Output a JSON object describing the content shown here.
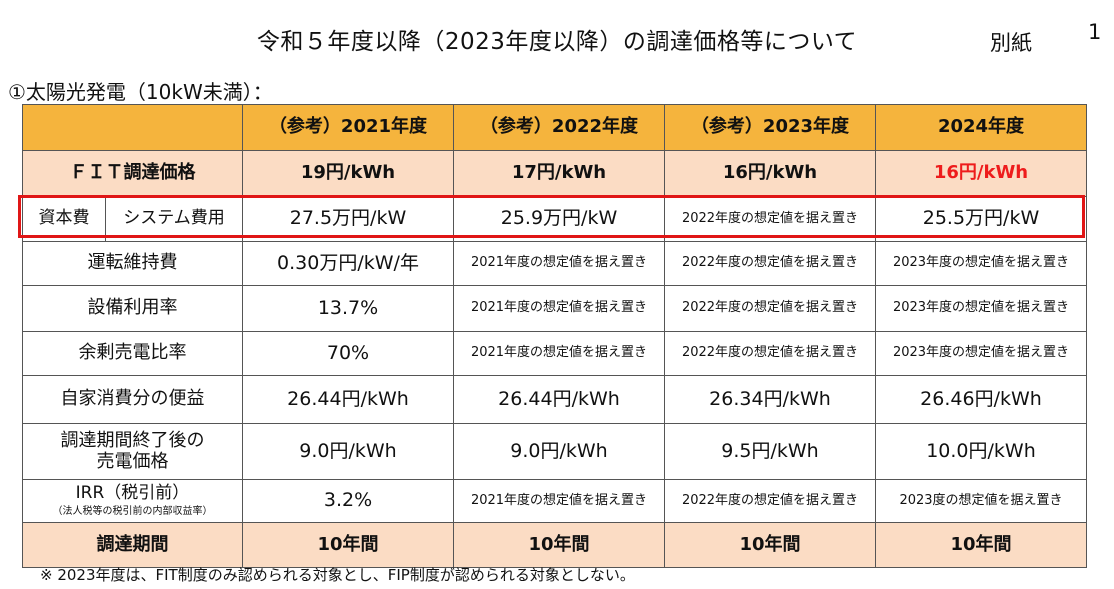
{
  "header": {
    "title": "令和５年度以降（2023年度以降）の調達価格等について",
    "tag": "別紙",
    "page_number": "1"
  },
  "section": {
    "subtitle": "①太陽光発電（10kW未満）："
  },
  "table": {
    "columns": [
      "",
      "（参考）2021年度",
      "（参考）2022年度",
      "（参考）2023年度",
      "2024年度"
    ],
    "fit": {
      "label": "ＦＩＴ調達価格",
      "values": [
        "19円/kWh",
        "17円/kWh",
        "16円/kWh",
        "16円/kWh"
      ]
    },
    "capital": {
      "label_a": "資本費",
      "label_b": "システム費用",
      "values": [
        "27.5万円/kW",
        "25.9万円/kW",
        "2022年度の想定値を据え置き",
        "25.5万円/kW"
      ]
    },
    "rows": [
      {
        "label": "運転維持費",
        "values": [
          "0.30万円/kW/年",
          "2021年度の想定値を据え置き",
          "2022年度の想定値を据え置き",
          "2023年度の想定値を据え置き"
        ]
      },
      {
        "label": "設備利用率",
        "values": [
          "13.7%",
          "2021年度の想定値を据え置き",
          "2022年度の想定値を据え置き",
          "2023年度の想定値を据え置き"
        ]
      },
      {
        "label": "余剰売電比率",
        "values": [
          "70%",
          "2021年度の想定値を据え置き",
          "2022年度の想定値を据え置き",
          "2023年度の想定値を据え置き"
        ]
      },
      {
        "label": "自家消費分の便益",
        "values": [
          "26.44円/kWh",
          "26.44円/kWh",
          "26.34円/kWh",
          "26.46円/kWh"
        ]
      },
      {
        "label_line1": "調達期間終了後の",
        "label_line2": "売電価格",
        "values": [
          "9.0円/kWh",
          "9.0円/kWh",
          "9.5円/kWh",
          "10.0円/kWh"
        ]
      },
      {
        "label": "IRR（税引前）",
        "sublabel": "（法人税等の税引前の内部収益率）",
        "values": [
          "3.2%",
          "2021年度の想定値を据え置き",
          "2022年度の想定値を据え置き",
          "2023度の想定値を据え置き"
        ]
      }
    ],
    "period": {
      "label": "調達期間",
      "values": [
        "10年間",
        "10年間",
        "10年間",
        "10年間"
      ]
    }
  },
  "note": "※ 2023年度は、FIT制度のみ認められる対象とし、FIP制度が認められる対象としない。",
  "colors": {
    "header_bg": "#f5b43d",
    "highlight_row_bg": "#fbdcc4",
    "highlight_border": "#e01616",
    "emphasis_text": "#ee1c1c"
  }
}
